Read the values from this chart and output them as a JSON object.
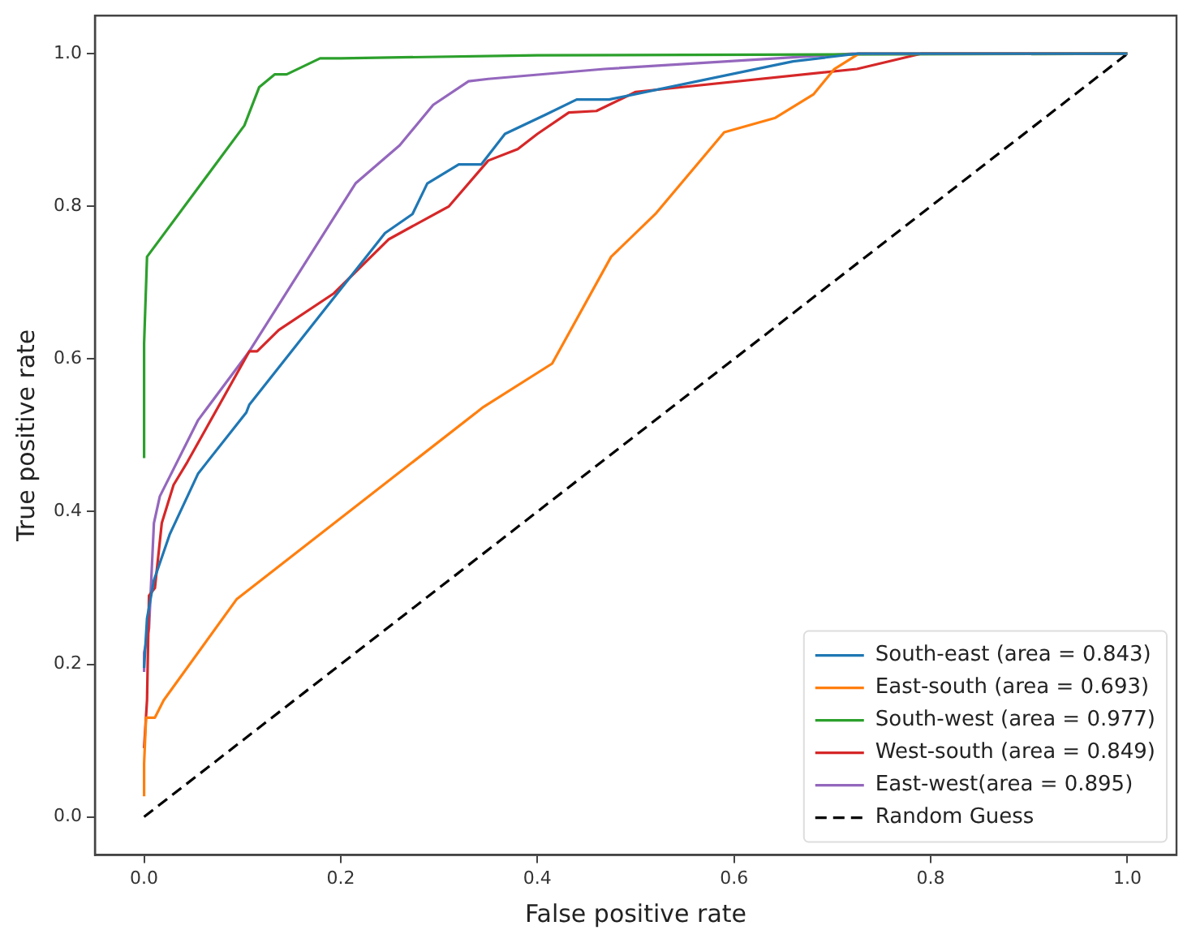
{
  "chart_data": {
    "type": "line",
    "xlabel": "False positive rate",
    "ylabel": "True positive rate",
    "xlim": [
      -0.05,
      1.05
    ],
    "ylim": [
      -0.05,
      1.05
    ],
    "xticks": [
      {
        "value": 0,
        "label": "0.0"
      },
      0.2,
      0.4,
      0.6,
      0.8,
      {
        "value": 1,
        "label": "1.0"
      }
    ],
    "yticks": [
      {
        "value": 0,
        "label": "0.0"
      },
      0.2,
      0.4,
      0.6,
      0.8,
      {
        "value": 1,
        "label": "1.0"
      }
    ],
    "grid": false,
    "legend": "bottom right",
    "marker": "none",
    "series": [
      {
        "name": "South-east (area = 0.843)",
        "color": "#1f77b4",
        "x": [
          0,
          0.003,
          0.01,
          0.026,
          0.055,
          0.104,
          0.107,
          0.245,
          0.273,
          0.288,
          0.32,
          0.343,
          0.367,
          0.408,
          0.44,
          0.473,
          0.66,
          0.725,
          1
        ],
        "values": [
          0.195,
          0.26,
          0.31,
          0.37,
          0.45,
          0.53,
          0.54,
          0.765,
          0.79,
          0.83,
          0.855,
          0.855,
          0.895,
          0.92,
          0.94,
          0.94,
          0.99,
          1,
          1
        ]
      },
      {
        "name": "East-south (area = 0.693)",
        "color": "#ff7f0e",
        "x": [
          0,
          0,
          0.002,
          0.011,
          0.02,
          0.094,
          0.338,
          0.345,
          0.415,
          0.475,
          0.52,
          0.59,
          0.642,
          0.681,
          0.702,
          0.727,
          1
        ],
        "values": [
          0.027,
          0.07,
          0.13,
          0.13,
          0.153,
          0.285,
          0.53,
          0.537,
          0.594,
          0.734,
          0.79,
          0.897,
          0.916,
          0.947,
          0.98,
          1,
          1
        ]
      },
      {
        "name": "South-west (area = 0.977)",
        "color": "#2ca02c",
        "x": [
          0,
          0,
          0.003,
          0.102,
          0.117,
          0.133,
          0.145,
          0.179,
          0.2,
          0.4,
          1
        ],
        "values": [
          0.47,
          0.62,
          0.734,
          0.906,
          0.956,
          0.973,
          0.973,
          0.994,
          0.994,
          0.998,
          1
        ]
      },
      {
        "name": "West-south (area = 0.849)",
        "color": "#d62728",
        "x": [
          0,
          0.003,
          0.005,
          0.011,
          0.018,
          0.03,
          0.044,
          0.107,
          0.115,
          0.137,
          0.193,
          0.249,
          0.31,
          0.35,
          0.38,
          0.4,
          0.432,
          0.46,
          0.5,
          0.725,
          0.79,
          1
        ],
        "values": [
          0.09,
          0.153,
          0.29,
          0.3,
          0.385,
          0.435,
          0.465,
          0.61,
          0.61,
          0.638,
          0.686,
          0.757,
          0.8,
          0.86,
          0.875,
          0.895,
          0.923,
          0.925,
          0.95,
          0.98,
          1,
          1
        ]
      },
      {
        "name": "East-west(area = 0.895)",
        "color": "#9467bd",
        "x": [
          0,
          0,
          0.005,
          0.01,
          0.016,
          0.055,
          0.107,
          0.215,
          0.26,
          0.294,
          0.33,
          0.35,
          0.468,
          0.72,
          1
        ],
        "values": [
          0.19,
          0.215,
          0.247,
          0.385,
          0.42,
          0.52,
          0.61,
          0.83,
          0.88,
          0.933,
          0.964,
          0.967,
          0.98,
          1,
          1
        ]
      },
      {
        "name": "Random Guess",
        "color": "#000000",
        "line_style": "dashed",
        "x": [
          0,
          1
        ],
        "values": [
          0,
          1
        ]
      }
    ]
  }
}
